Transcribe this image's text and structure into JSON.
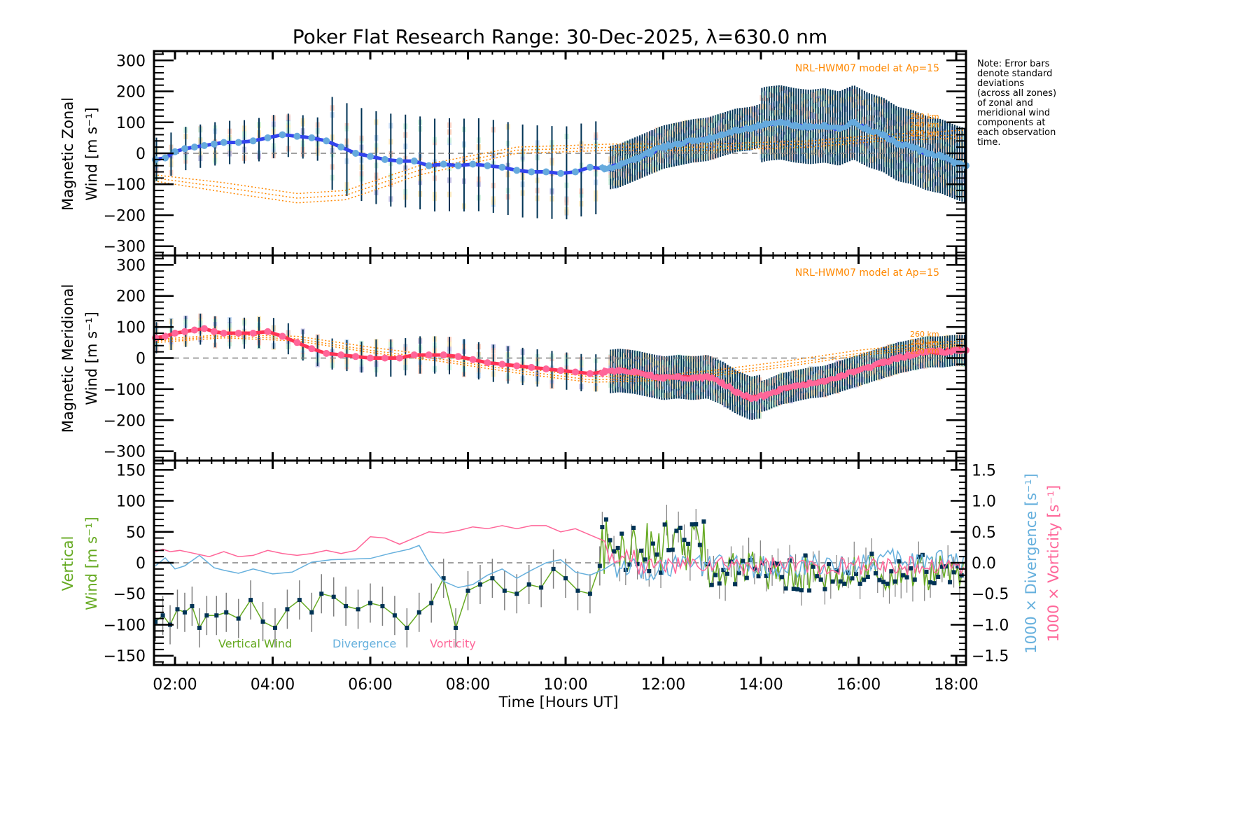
{
  "chart_data": [
    {
      "type": "line",
      "panel": "zonal",
      "title": "Poker Flat Research Range: 30-Dec-2025, λ=630.0 nm",
      "xlabel": "",
      "ylabel_line1": "Magnetic Zonal",
      "ylabel_line2": "Wind [m s⁻¹]",
      "ylim": [
        -330,
        330
      ],
      "yticks": [
        -300,
        -200,
        -100,
        0,
        100,
        200,
        300
      ],
      "ytick_labels": [
        "−300",
        "−200",
        "−100",
        "0",
        "100",
        "200",
        "300"
      ],
      "model_label": "NRL-HWM07 model at Ap=15",
      "model_altitude_labels": [
        "260 km",
        "240 km",
        "220 km"
      ],
      "zero_line": "dashed",
      "series": [
        {
          "name": "Mean zonal wind",
          "color": "#3344ee",
          "x_hours": [
            1.6,
            1.8,
            2.0,
            2.2,
            2.4,
            2.6,
            2.8,
            3.0,
            3.3,
            3.6,
            3.9,
            4.2,
            4.5,
            4.8,
            5.1,
            5.4,
            5.7,
            6.0,
            6.3,
            6.6,
            6.9,
            7.2,
            7.5,
            7.8,
            8.1,
            8.4,
            8.7,
            9.0,
            9.3,
            9.6,
            9.9,
            10.2,
            10.5,
            10.8,
            11.1,
            11.4,
            11.7,
            12.0,
            12.3,
            12.6,
            12.9,
            13.2,
            13.5,
            13.8,
            14.1,
            14.4,
            14.7,
            15.0,
            15.3,
            15.6,
            15.9,
            16.2,
            16.5,
            16.8,
            17.1,
            17.4,
            17.7,
            18.0,
            18.2
          ],
          "values": [
            -20,
            -15,
            5,
            15,
            20,
            25,
            30,
            35,
            35,
            40,
            50,
            60,
            55,
            50,
            40,
            20,
            0,
            -10,
            -20,
            -25,
            -25,
            -40,
            -35,
            -40,
            -35,
            -40,
            -45,
            -55,
            -60,
            -60,
            -65,
            -60,
            -45,
            -50,
            -40,
            -20,
            0,
            20,
            30,
            40,
            45,
            60,
            75,
            80,
            95,
            100,
            90,
            85,
            90,
            80,
            100,
            75,
            60,
            30,
            20,
            0,
            -10,
            -30,
            -40
          ]
        },
        {
          "name": "Error bar half-width",
          "color": "#003355",
          "note": "standard deviation across zones, ~±80 early, ~±150 around 06:00-10:00, ~±100 late"
        },
        {
          "name": "HWM07 260 km",
          "color": "#ff8800",
          "style": "dotted",
          "x_hours": [
            1.6,
            3,
            4.5,
            5.5,
            7,
            9,
            11,
            13,
            15,
            16.5,
            18.2
          ],
          "values": [
            -70,
            -95,
            -130,
            -120,
            -40,
            20,
            30,
            30,
            40,
            60,
            75
          ]
        },
        {
          "name": "HWM07 240 km",
          "color": "#ff8800",
          "style": "dotted",
          "x_hours": [
            1.6,
            3,
            4.5,
            5.5,
            7,
            9,
            11,
            13,
            15,
            16.5,
            18.2
          ],
          "values": [
            -80,
            -110,
            -145,
            -135,
            -55,
            10,
            20,
            20,
            30,
            50,
            60
          ]
        },
        {
          "name": "HWM07 220 km",
          "color": "#ff8800",
          "style": "dotted",
          "x_hours": [
            1.6,
            3,
            4.5,
            5.5,
            7,
            9,
            11,
            13,
            15,
            16.5,
            18.2
          ],
          "values": [
            -90,
            -125,
            -160,
            -150,
            -70,
            0,
            10,
            10,
            20,
            40,
            50
          ]
        }
      ]
    },
    {
      "type": "line",
      "panel": "meridional",
      "ylabel_line1": "Magnetic Meridional",
      "ylabel_line2": "Wind [m s⁻¹]",
      "ylim": [
        -330,
        330
      ],
      "yticks": [
        -300,
        -200,
        -100,
        0,
        100,
        200,
        300
      ],
      "ytick_labels": [
        "−300",
        "−200",
        "−100",
        "0",
        "100",
        "200",
        "300"
      ],
      "model_label": "NRL-HWM07 model at Ap=15",
      "model_altitude_labels": [
        "260 km",
        "240 km",
        "220 km"
      ],
      "zero_line": "dashed",
      "series": [
        {
          "name": "Mean meridional wind",
          "color": "#ff3355",
          "x_hours": [
            1.6,
            1.8,
            2.0,
            2.2,
            2.4,
            2.6,
            2.8,
            3.0,
            3.3,
            3.6,
            3.9,
            4.2,
            4.5,
            4.8,
            5.1,
            5.4,
            5.7,
            6.0,
            6.3,
            6.6,
            6.9,
            7.2,
            7.5,
            7.8,
            8.1,
            8.4,
            8.7,
            9.0,
            9.3,
            9.6,
            9.9,
            10.2,
            10.5,
            10.8,
            11.1,
            11.4,
            11.7,
            12.0,
            12.3,
            12.6,
            12.9,
            13.2,
            13.5,
            13.8,
            14.1,
            14.4,
            14.7,
            15.0,
            15.3,
            15.6,
            15.9,
            16.2,
            16.5,
            16.8,
            17.1,
            17.4,
            17.7,
            18.0,
            18.2
          ],
          "values": [
            65,
            70,
            80,
            85,
            90,
            95,
            85,
            80,
            80,
            80,
            85,
            70,
            50,
            30,
            15,
            10,
            5,
            0,
            0,
            0,
            10,
            10,
            10,
            5,
            -5,
            -15,
            -20,
            -25,
            -30,
            -35,
            -40,
            -45,
            -50,
            -45,
            -40,
            -45,
            -55,
            -65,
            -60,
            -65,
            -60,
            -80,
            -110,
            -130,
            -120,
            -100,
            -90,
            -80,
            -75,
            -60,
            -45,
            -30,
            -15,
            0,
            10,
            20,
            20,
            25,
            25
          ]
        },
        {
          "name": "HWM07 260 km",
          "color": "#ff8800",
          "style": "dotted",
          "x_hours": [
            1.6,
            3,
            4.5,
            6,
            7.5,
            9,
            10.5,
            12,
            13,
            14.5,
            16,
            17.5,
            18.2
          ],
          "values": [
            60,
            75,
            70,
            35,
            5,
            -30,
            -60,
            -55,
            -40,
            -10,
            25,
            50,
            55
          ]
        },
        {
          "name": "HWM07 240 km",
          "color": "#ff8800",
          "style": "dotted",
          "x_hours": [
            1.6,
            3,
            4.5,
            6,
            7.5,
            9,
            10.5,
            12,
            13,
            14.5,
            16,
            17.5,
            18.2
          ],
          "values": [
            55,
            70,
            62,
            25,
            -5,
            -40,
            -70,
            -65,
            -50,
            -20,
            15,
            40,
            45
          ]
        },
        {
          "name": "HWM07 220 km",
          "color": "#ff8800",
          "style": "dotted",
          "x_hours": [
            1.6,
            3,
            4.5,
            6,
            7.5,
            9,
            10.5,
            12,
            13,
            14.5,
            16,
            17.5,
            18.2
          ],
          "values": [
            50,
            65,
            55,
            18,
            -12,
            -48,
            -78,
            -72,
            -58,
            -28,
            8,
            32,
            38
          ]
        }
      ]
    },
    {
      "type": "line",
      "panel": "vertical",
      "xlabel": "Time [Hours UT]",
      "xticks_hours": [
        2,
        4,
        6,
        8,
        10,
        12,
        14,
        16,
        18
      ],
      "xtick_labels": [
        "02:00",
        "04:00",
        "06:00",
        "08:00",
        "10:00",
        "12:00",
        "14:00",
        "16:00",
        "18:00"
      ],
      "xlim_hours": [
        1.57,
        18.2
      ],
      "ylabel_line1": "Vertical",
      "ylabel_line2": "Wind [m s⁻¹]",
      "ylabel_color": "#66aa22",
      "ylim": [
        -165,
        165
      ],
      "yticks": [
        -150,
        -100,
        -50,
        0,
        50,
        100,
        150
      ],
      "ytick_labels": [
        "−150",
        "−100",
        "−50",
        "0",
        "50",
        "100",
        "150"
      ],
      "y2label_div": "1000 × Divergence [s⁻¹]",
      "y2label_div_color": "#66b0dd",
      "y2label_vort": "1000 × Vorticity [s⁻¹]",
      "y2label_vort_color": "#ff6699",
      "y2lim": [
        -1.65,
        1.65
      ],
      "y2ticks": [
        -1.5,
        -1.0,
        -0.5,
        0.0,
        0.5,
        1.0,
        1.5
      ],
      "y2tick_labels": [
        "−1.5",
        "−1.0",
        "−0.5",
        "0.0",
        "0.5",
        "1.0",
        "1.5"
      ],
      "legend": [
        {
          "label": "Vertical Wind",
          "color": "#66aa22"
        },
        {
          "label": "Divergence",
          "color": "#66b0dd"
        },
        {
          "label": "Vorticity",
          "color": "#ff6699"
        }
      ],
      "series": [
        {
          "name": "Vertical Wind",
          "color": "#66aa22",
          "marker_color": "#003355",
          "error_bar_color": "#808080",
          "x_hours": [
            1.6,
            1.75,
            1.9,
            2.05,
            2.2,
            2.35,
            2.5,
            2.65,
            2.85,
            3.05,
            3.3,
            3.55,
            3.8,
            4.05,
            4.3,
            4.55,
            4.8,
            5.0,
            5.25,
            5.5,
            5.75,
            6.0,
            6.25,
            6.5,
            6.75,
            7.0,
            7.25,
            7.5,
            7.75,
            8.0,
            8.25,
            8.5,
            8.75,
            9.0,
            9.25,
            9.5,
            9.75,
            10.0,
            10.25,
            10.5,
            10.7
          ],
          "values": [
            -95,
            -85,
            -100,
            -75,
            -80,
            -70,
            -105,
            -85,
            -85,
            -80,
            -90,
            -60,
            -95,
            -105,
            -75,
            -60,
            -80,
            -50,
            -55,
            -70,
            -75,
            -65,
            -70,
            -85,
            -105,
            -80,
            -65,
            -25,
            -105,
            -45,
            -35,
            -25,
            -45,
            -50,
            -35,
            -40,
            -10,
            -25,
            -45,
            -50,
            -5
          ],
          "dense_segment_note": "after 10:45 UT, dense noisy samples oscillating roughly between -60 and +75"
        },
        {
          "name": "Divergence",
          "color": "#66b0dd",
          "axis": "right",
          "x_hours": [
            1.6,
            1.8,
            2.0,
            2.2,
            2.5,
            2.8,
            3.0,
            3.3,
            3.6,
            4.0,
            4.4,
            4.8,
            5.2,
            5.6,
            6.0,
            6.4,
            6.8,
            7.0,
            7.2,
            7.5,
            7.8,
            8.1,
            8.4,
            8.7,
            9.0,
            9.3,
            9.6,
            9.9,
            10.2,
            10.5,
            10.8,
            11.0
          ],
          "values": [
            -0.05,
            0.08,
            -0.1,
            -0.05,
            0.12,
            -0.08,
            -0.12,
            -0.17,
            -0.1,
            -0.18,
            -0.15,
            0.01,
            0.05,
            0.06,
            0.07,
            0.15,
            0.22,
            0.28,
            0.0,
            -0.3,
            -0.4,
            -0.35,
            -0.2,
            -0.1,
            -0.25,
            -0.12,
            0.0,
            0.05,
            -0.15,
            -0.2,
            -0.1,
            0.0
          ],
          "dense_segment_note": "after 11:00 UT, fluctuates roughly between -0.5 and +0.3"
        },
        {
          "name": "Vorticity",
          "color": "#ff6699",
          "axis": "right",
          "x_hours": [
            1.6,
            1.75,
            1.9,
            2.1,
            2.4,
            2.7,
            3.0,
            3.3,
            3.6,
            3.9,
            4.2,
            4.5,
            4.8,
            5.1,
            5.4,
            5.7,
            6.0,
            6.3,
            6.6,
            6.9,
            7.2,
            7.5,
            7.8,
            8.1,
            8.4,
            8.7,
            9.0,
            9.3,
            9.6,
            9.9,
            10.2,
            10.5,
            10.8
          ],
          "values": [
            0.18,
            0.22,
            0.18,
            0.2,
            0.15,
            0.1,
            0.18,
            0.1,
            0.12,
            0.2,
            0.15,
            0.12,
            0.15,
            0.2,
            0.15,
            0.2,
            0.42,
            0.4,
            0.3,
            0.4,
            0.5,
            0.48,
            0.52,
            0.58,
            0.55,
            0.6,
            0.55,
            0.6,
            0.6,
            0.5,
            0.55,
            0.45,
            0.35
          ],
          "dense_segment_note": "after 11:00 UT, fluctuates roughly between -0.3 and +0.2"
        }
      ]
    }
  ],
  "side_note": {
    "lines": [
      "Note: Error bars",
      "denote standard",
      "deviations",
      "(across all zones)",
      "of zonal and",
      "meridional wind",
      "components at",
      "each observation",
      "time."
    ]
  }
}
